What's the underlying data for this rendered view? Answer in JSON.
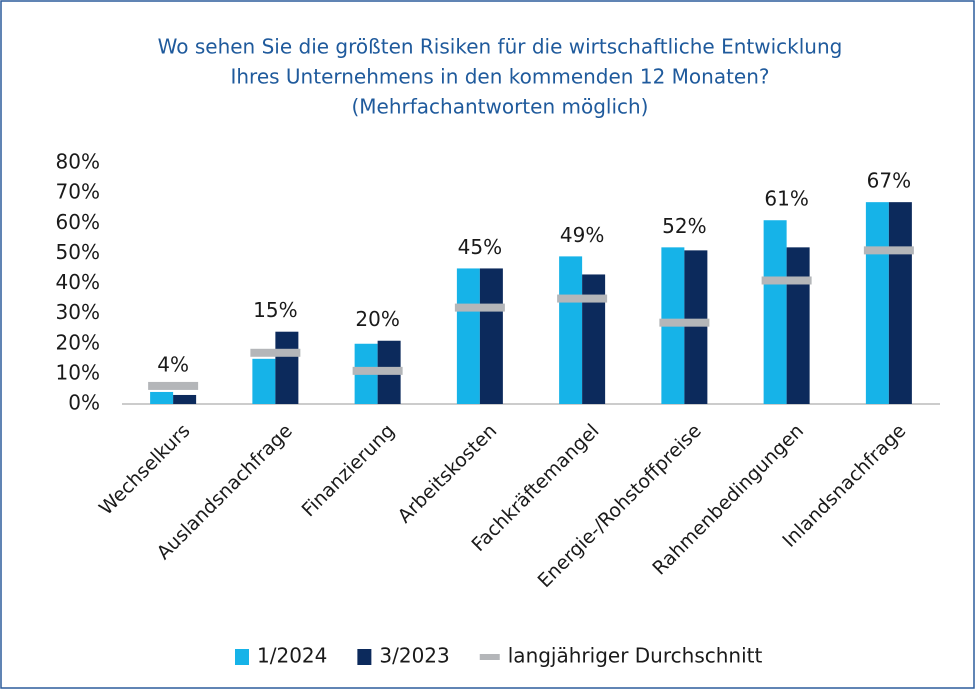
{
  "chart_data": {
    "type": "bar",
    "title": [
      "Wo sehen Sie die größten Risiken für die wirtschaftliche Entwicklung",
      "Ihres Unternehmens in den kommenden 12 Monaten?"
    ],
    "subtitle": "(Mehrfachantworten möglich)",
    "categories": [
      "Wechselkurs",
      "Auslandsnachfrage",
      "Finanzierung",
      "Arbeitskosten",
      "Fachkräftemangel",
      "Energie-/Rohstoffpreise",
      "Rahmenbedingungen",
      "Inlandsnachfrage"
    ],
    "series": [
      {
        "name": "1/2024",
        "color": "#16b3e8",
        "values": [
          4,
          15,
          20,
          45,
          49,
          52,
          61,
          67
        ],
        "value_labels": [
          "4%",
          "15%",
          "20%",
          "45%",
          "49%",
          "52%",
          "61%",
          "67%"
        ]
      },
      {
        "name": "3/2023",
        "color": "#0c2a5c",
        "values": [
          3,
          24,
          21,
          45,
          43,
          51,
          52,
          67
        ]
      },
      {
        "name": "langjähriger Durchschnitt",
        "color": "#b4b6b9",
        "marker": "dash",
        "values": [
          6,
          17,
          11,
          32,
          35,
          27,
          41,
          51
        ]
      }
    ],
    "ylim": [
      0,
      80
    ],
    "yticks": [
      {
        "value": 0,
        "label": "0%"
      },
      {
        "value": 10,
        "label": "10%"
      },
      {
        "value": 20,
        "label": "20%"
      },
      {
        "value": 30,
        "label": "30%"
      },
      {
        "value": 40,
        "label": "40%"
      },
      {
        "value": 50,
        "label": "50%"
      },
      {
        "value": 60,
        "label": "60%"
      },
      {
        "value": 70,
        "label": "70%"
      },
      {
        "value": 80,
        "label": "80%"
      }
    ],
    "grid": false,
    "legend": "bottom"
  }
}
